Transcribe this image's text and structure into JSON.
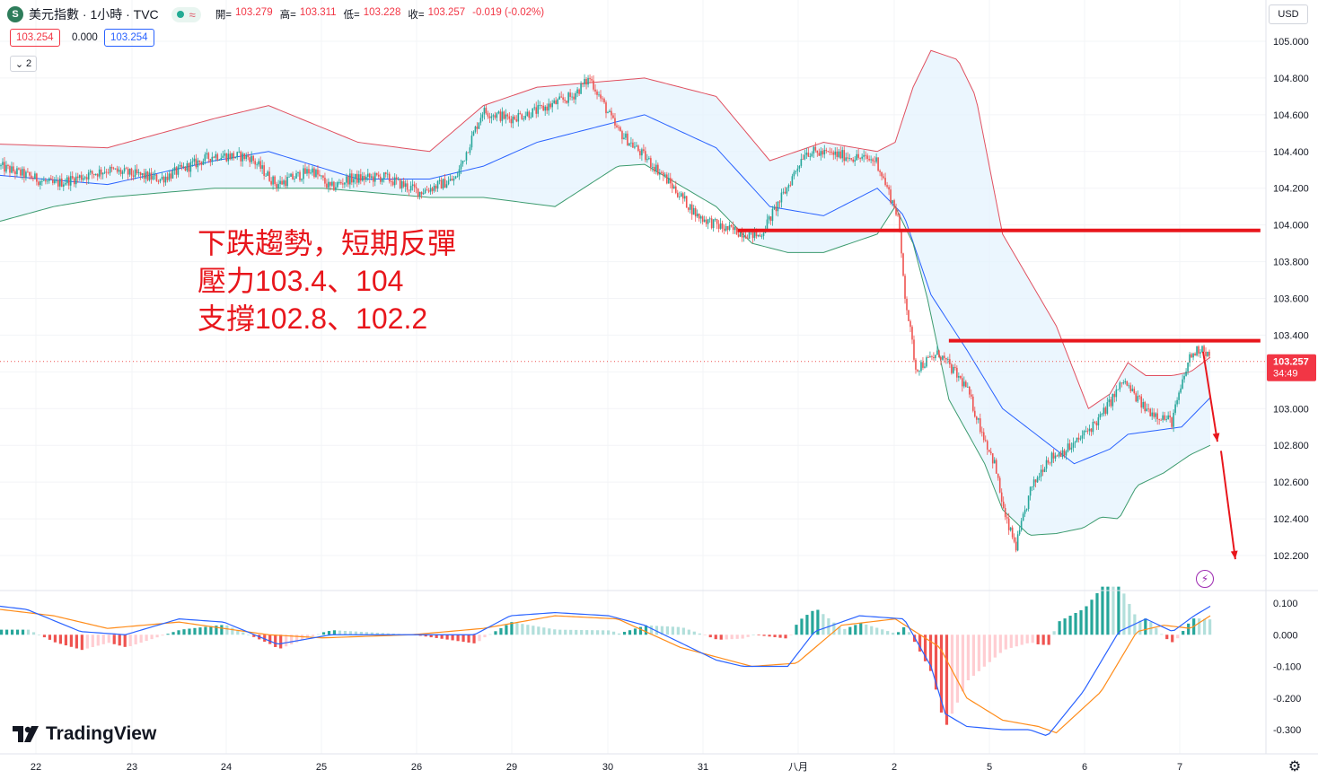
{
  "header": {
    "logo_letter": "S",
    "title": "美元指數 · 1小時 · TVC",
    "status_wave": "≈",
    "ohlc": [
      {
        "label": "開=",
        "value": "103.279"
      },
      {
        "label": "高=",
        "value": "103.311"
      },
      {
        "label": "低=",
        "value": "103.228"
      },
      {
        "label": "收=",
        "value": "103.257"
      },
      {
        "label": "",
        "value": "-0.019 (-0.02%)"
      }
    ]
  },
  "pills": {
    "sell": "103.254",
    "spread": "0.000",
    "buy": "103.254"
  },
  "collapse_label": "2",
  "currency": "USD",
  "annotation": {
    "line1": "下跌趨勢，短期反彈",
    "line2": "壓力103.4、104",
    "line3": "支撐102.8、102.2"
  },
  "brand": "TradingView",
  "price_tag": {
    "price": "103.257",
    "countdown": "34:49"
  },
  "colors": {
    "up": "#26a69a",
    "down": "#ef5350",
    "upper_band": "#e05060",
    "lower_band": "#3c9b6f",
    "basis": "#2962ff",
    "band_fill": "#e3f2fd",
    "macd_line": "#2962ff",
    "signal_line": "#ff8c1a",
    "annotation": "#e8161c"
  },
  "chart_data": {
    "type": "candlestick",
    "symbol": "美元指數",
    "interval": "1小時",
    "x_tick_labels": [
      "22",
      "23",
      "24",
      "25",
      "26",
      "29",
      "30",
      "31",
      "八月",
      "2",
      "5",
      "6",
      "7"
    ],
    "y_ticks": [
      "105.000",
      "104.800",
      "104.600",
      "104.400",
      "104.200",
      "104.000",
      "103.800",
      "103.600",
      "103.400",
      "103.200",
      "103.000",
      "102.800",
      "102.600",
      "102.400",
      "102.200"
    ],
    "ylim": [
      102.13,
      105.06
    ],
    "last_price": 103.257,
    "trend_points": [
      [
        0,
        104.32
      ],
      [
        30,
        104.22
      ],
      [
        60,
        104.3
      ],
      [
        90,
        104.25
      ],
      [
        120,
        104.38
      ],
      [
        140,
        104.37
      ],
      [
        155,
        104.22
      ],
      [
        175,
        104.3
      ],
      [
        185,
        104.2
      ],
      [
        195,
        104.25
      ],
      [
        215,
        104.26
      ],
      [
        235,
        104.18
      ],
      [
        255,
        104.25
      ],
      [
        270,
        104.62
      ],
      [
        285,
        104.58
      ],
      [
        300,
        104.62
      ],
      [
        320,
        104.7
      ],
      [
        330,
        104.8
      ],
      [
        345,
        104.52
      ],
      [
        370,
        104.28
      ],
      [
        390,
        104.05
      ],
      [
        405,
        103.98
      ],
      [
        425,
        103.94
      ],
      [
        440,
        104.2
      ],
      [
        450,
        104.4
      ],
      [
        470,
        104.38
      ],
      [
        490,
        104.35
      ],
      [
        496,
        104.2
      ],
      [
        502,
        104.05
      ],
      [
        506,
        103.62
      ],
      [
        512,
        103.22
      ],
      [
        525,
        103.3
      ],
      [
        540,
        103.12
      ],
      [
        548,
        102.9
      ],
      [
        556,
        102.7
      ],
      [
        562,
        102.4
      ],
      [
        568,
        102.25
      ],
      [
        576,
        102.55
      ],
      [
        585,
        102.72
      ],
      [
        600,
        102.8
      ],
      [
        615,
        102.95
      ],
      [
        628,
        103.15
      ],
      [
        640,
        103.0
      ],
      [
        655,
        102.93
      ],
      [
        665,
        103.28
      ],
      [
        672,
        103.34
      ],
      [
        676,
        103.28
      ]
    ],
    "bollinger": {
      "upper": [
        [
          0,
          104.44
        ],
        [
          60,
          104.42
        ],
        [
          120,
          104.58
        ],
        [
          150,
          104.65
        ],
        [
          200,
          104.45
        ],
        [
          240,
          104.4
        ],
        [
          270,
          104.65
        ],
        [
          300,
          104.75
        ],
        [
          360,
          104.8
        ],
        [
          400,
          104.7
        ],
        [
          430,
          104.35
        ],
        [
          460,
          104.45
        ],
        [
          490,
          104.4
        ],
        [
          500,
          104.45
        ],
        [
          510,
          104.75
        ],
        [
          520,
          104.95
        ],
        [
          535,
          104.9
        ],
        [
          545,
          104.7
        ],
        [
          560,
          103.95
        ],
        [
          590,
          103.45
        ],
        [
          608,
          103.0
        ],
        [
          620,
          103.08
        ],
        [
          630,
          103.25
        ],
        [
          640,
          103.18
        ],
        [
          655,
          103.18
        ],
        [
          665,
          103.2
        ],
        [
          676,
          103.28
        ]
      ],
      "basis": [
        [
          0,
          104.27
        ],
        [
          60,
          104.22
        ],
        [
          120,
          104.35
        ],
        [
          150,
          104.4
        ],
        [
          200,
          104.25
        ],
        [
          240,
          104.25
        ],
        [
          270,
          104.32
        ],
        [
          300,
          104.45
        ],
        [
          360,
          104.6
        ],
        [
          400,
          104.42
        ],
        [
          430,
          104.1
        ],
        [
          460,
          104.05
        ],
        [
          490,
          104.2
        ],
        [
          505,
          104.05
        ],
        [
          520,
          103.62
        ],
        [
          540,
          103.32
        ],
        [
          560,
          103.0
        ],
        [
          580,
          102.85
        ],
        [
          600,
          102.7
        ],
        [
          620,
          102.78
        ],
        [
          630,
          102.86
        ],
        [
          645,
          102.88
        ],
        [
          660,
          102.9
        ],
        [
          676,
          103.06
        ]
      ],
      "lower": [
        [
          0,
          104.02
        ],
        [
          30,
          104.1
        ],
        [
          60,
          104.15
        ],
        [
          120,
          104.2
        ],
        [
          180,
          104.2
        ],
        [
          240,
          104.15
        ],
        [
          270,
          104.15
        ],
        [
          310,
          104.1
        ],
        [
          345,
          104.32
        ],
        [
          360,
          104.33
        ],
        [
          400,
          104.1
        ],
        [
          420,
          103.9
        ],
        [
          440,
          103.85
        ],
        [
          460,
          103.85
        ],
        [
          490,
          103.95
        ],
        [
          500,
          104.1
        ],
        [
          510,
          103.9
        ],
        [
          518,
          103.6
        ],
        [
          530,
          103.05
        ],
        [
          550,
          102.7
        ],
        [
          560,
          102.45
        ],
        [
          575,
          102.31
        ],
        [
          590,
          102.32
        ],
        [
          605,
          102.35
        ],
        [
          615,
          102.41
        ],
        [
          625,
          102.4
        ],
        [
          635,
          102.58
        ],
        [
          650,
          102.65
        ],
        [
          665,
          102.75
        ],
        [
          676,
          102.8
        ]
      ]
    },
    "resistance_lines": [
      {
        "price": 103.97,
        "from": 412,
        "to": 704
      },
      {
        "price": 103.37,
        "from": 530,
        "to": 704
      }
    ],
    "arrows": [
      {
        "from": [
          672,
          103.31
        ],
        "to": [
          680,
          102.82
        ]
      },
      {
        "from": [
          682,
          102.77
        ],
        "to": [
          690,
          102.18
        ]
      }
    ],
    "macd": {
      "y_ticks": [
        "0.100",
        "0.000",
        "-0.100",
        "-0.200",
        "-0.300"
      ],
      "ylim": [
        -0.34,
        0.12
      ],
      "macd_line": [
        [
          0,
          0.09
        ],
        [
          15,
          0.08
        ],
        [
          45,
          0.01
        ],
        [
          70,
          0.0
        ],
        [
          100,
          0.05
        ],
        [
          125,
          0.04
        ],
        [
          155,
          -0.03
        ],
        [
          185,
          0.0
        ],
        [
          215,
          0.0
        ],
        [
          240,
          0.0
        ],
        [
          265,
          0.0
        ],
        [
          285,
          0.06
        ],
        [
          310,
          0.07
        ],
        [
          340,
          0.06
        ],
        [
          360,
          0.03
        ],
        [
          400,
          -0.08
        ],
        [
          415,
          -0.1
        ],
        [
          440,
          -0.1
        ],
        [
          455,
          0.01
        ],
        [
          480,
          0.06
        ],
        [
          505,
          0.05
        ],
        [
          520,
          -0.1
        ],
        [
          528,
          -0.25
        ],
        [
          540,
          -0.29
        ],
        [
          560,
          -0.3
        ],
        [
          575,
          -0.3
        ],
        [
          585,
          -0.32
        ],
        [
          605,
          -0.18
        ],
        [
          625,
          0.01
        ],
        [
          640,
          0.05
        ],
        [
          655,
          0.01
        ],
        [
          667,
          0.06
        ],
        [
          676,
          0.09
        ]
      ],
      "signal_line": [
        [
          0,
          0.08
        ],
        [
          30,
          0.06
        ],
        [
          60,
          0.02
        ],
        [
          100,
          0.04
        ],
        [
          150,
          0.0
        ],
        [
          180,
          -0.01
        ],
        [
          230,
          0.0
        ],
        [
          270,
          0.02
        ],
        [
          310,
          0.06
        ],
        [
          345,
          0.05
        ],
        [
          380,
          -0.04
        ],
        [
          420,
          -0.1
        ],
        [
          445,
          -0.09
        ],
        [
          470,
          0.03
        ],
        [
          500,
          0.05
        ],
        [
          525,
          -0.04
        ],
        [
          540,
          -0.2
        ],
        [
          560,
          -0.27
        ],
        [
          580,
          -0.29
        ],
        [
          590,
          -0.31
        ],
        [
          615,
          -0.18
        ],
        [
          635,
          0.01
        ],
        [
          650,
          0.03
        ],
        [
          665,
          0.02
        ],
        [
          676,
          0.06
        ]
      ]
    }
  }
}
